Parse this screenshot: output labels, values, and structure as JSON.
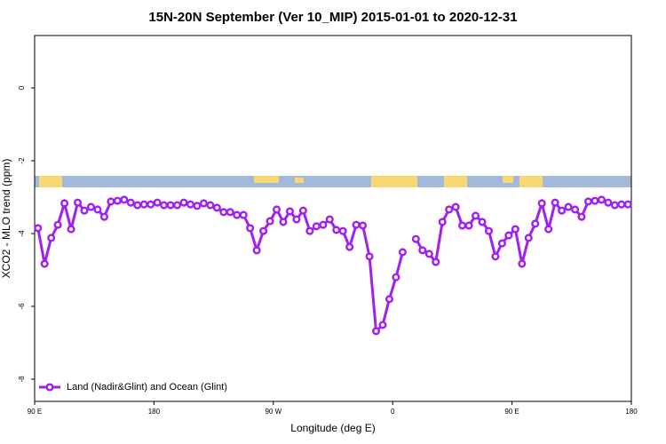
{
  "chart_data": {
    "type": "line",
    "title": "15N-20N September (Ver 10_MIP)   2015-01-01 to 2020-12-31",
    "x_label": "Longitude (deg E)",
    "y_label": "XCO2 - MLO trend (ppm)",
    "xlim": [
      90,
      540
    ],
    "xticks": [
      {
        "value": 90,
        "label": "90 E"
      },
      180,
      {
        "value": 270,
        "label": "90 W"
      },
      {
        "value": 360,
        "label": "0"
      },
      {
        "value": 450,
        "label": "90 E"
      },
      {
        "value": 540,
        "label": "180"
      }
    ],
    "ylim": [
      -8.61,
      1.44
    ],
    "yticks": [
      0,
      -2,
      -4,
      -6,
      -8
    ],
    "x": [
      92.5,
      97.5,
      102.5,
      107.5,
      112.5,
      117.5,
      122.5,
      127.5,
      132.5,
      137.5,
      142.5,
      147.5,
      152.5,
      157.5,
      162.5,
      167.5,
      172.5,
      177.5,
      182.5,
      187.5,
      192.5,
      197.5,
      202.5,
      207.5,
      212.5,
      217.5,
      222.5,
      227.5,
      232.5,
      237.5,
      242.5,
      247.5,
      252.5,
      257.5,
      262.5,
      267.5,
      272.5,
      277.5,
      282.5,
      287.5,
      292.5,
      297.5,
      302.5,
      307.5,
      312.5,
      317.5,
      322.5,
      327.5,
      332.5,
      337.5,
      342.5,
      347.5,
      352.5,
      357.5,
      362.5,
      367.5,
      372.5,
      377.5,
      382.5,
      387.5,
      392.5,
      397.5,
      402.5,
      407.5,
      412.5,
      417.5,
      422.5,
      427.5,
      432.5,
      437.5,
      442.5,
      447.5,
      452.5,
      457.5,
      462.5,
      467.5,
      472.5,
      477.5,
      482.5,
      487.5,
      492.5,
      497.5,
      502.5,
      507.5,
      512.5,
      517.5,
      522.5,
      527.5,
      532.5,
      537.5
    ],
    "series": [
      {
        "name": "Land (Nadir&Glint) and Ocean (Glint)",
        "color": "#a020f0",
        "values": [
          -3.85,
          -4.83,
          -4.12,
          -3.76,
          -3.17,
          -3.88,
          -3.15,
          -3.37,
          -3.27,
          -3.34,
          -3.54,
          -3.12,
          -3.1,
          -3.07,
          -3.15,
          -3.22,
          -3.2,
          -3.2,
          -3.15,
          -3.22,
          -3.22,
          -3.22,
          -3.15,
          -3.2,
          -3.24,
          -3.17,
          -3.22,
          -3.29,
          -3.41,
          -3.41,
          -3.49,
          -3.49,
          -3.85,
          -4.46,
          -3.93,
          -3.66,
          -3.34,
          -3.68,
          -3.39,
          -3.61,
          -3.37,
          -3.93,
          -3.8,
          -3.76,
          -3.61,
          -3.9,
          -3.93,
          -4.37,
          -3.76,
          -3.78,
          -4.63,
          -6.68,
          -6.51,
          -5.8,
          -5.2,
          -4.51,
          null,
          -4.15,
          -4.46,
          -4.56,
          -4.78,
          -3.68,
          -3.34,
          -3.27,
          -3.78,
          -3.78,
          -3.51,
          -3.68,
          -3.93,
          -4.63,
          -4.27,
          -4.05,
          -3.88,
          -4.83,
          -4.12,
          -3.73,
          -3.17,
          -3.88,
          -3.15,
          -3.37,
          -3.27,
          -3.34,
          -3.54,
          -3.12,
          -3.1,
          -3.07,
          -3.15,
          -3.22,
          -3.2,
          -3.2
        ]
      }
    ],
    "legend": "bottom-left"
  }
}
